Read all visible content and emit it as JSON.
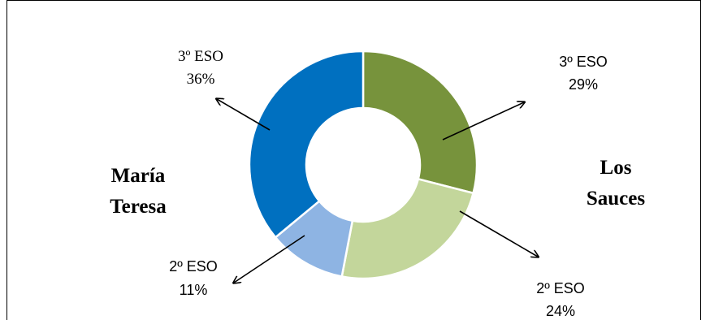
{
  "chart_data": {
    "type": "pie",
    "donut": true,
    "groups": [
      {
        "name": "Los Sauces",
        "slices": [
          {
            "label": "3º ESO",
            "value": 29,
            "value_label": "29%",
            "color": "#77933c"
          },
          {
            "label": "2º ESO",
            "value": 24,
            "value_label": "24%",
            "color": "#c3d69b"
          }
        ]
      },
      {
        "name": "María Teresa",
        "slices": [
          {
            "label": "2º ESO",
            "value": 11,
            "value_label": "11%",
            "color": "#8eb4e3"
          },
          {
            "label": "3º ESO",
            "value": 36,
            "value_label": "36%",
            "color": "#0070c0"
          }
        ]
      }
    ],
    "school_labels": {
      "right": [
        "Los",
        "Sauces"
      ],
      "left": [
        "María",
        "Teresa"
      ]
    }
  }
}
